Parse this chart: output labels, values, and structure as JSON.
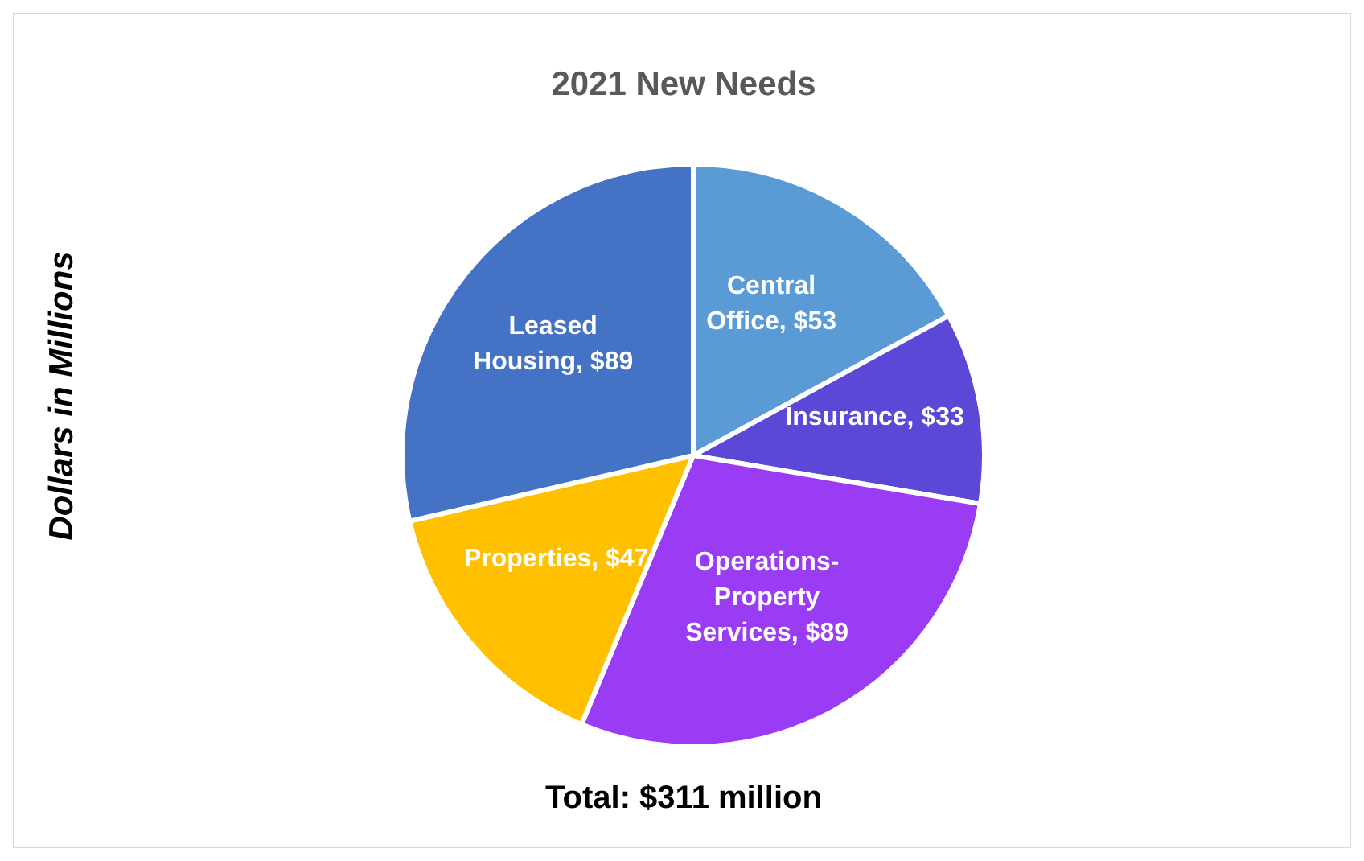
{
  "chart_data": {
    "type": "pie",
    "title": "2021 New Needs",
    "ylabel": "Dollars in Millions",
    "categories": [
      "Central Office",
      "Insurance",
      "Operations-Property Services",
      "Properties",
      "Leased Housing"
    ],
    "values": [
      53,
      33,
      89,
      47,
      89
    ],
    "value_labels": [
      "$53",
      "$33",
      "$89",
      "$47",
      "$89"
    ],
    "colors": [
      "#5b9bd5",
      "#5b48d6",
      "#9b3cf5",
      "#ffc000",
      "#4472c4"
    ],
    "annotations": [
      "Total: $311 million"
    ]
  }
}
